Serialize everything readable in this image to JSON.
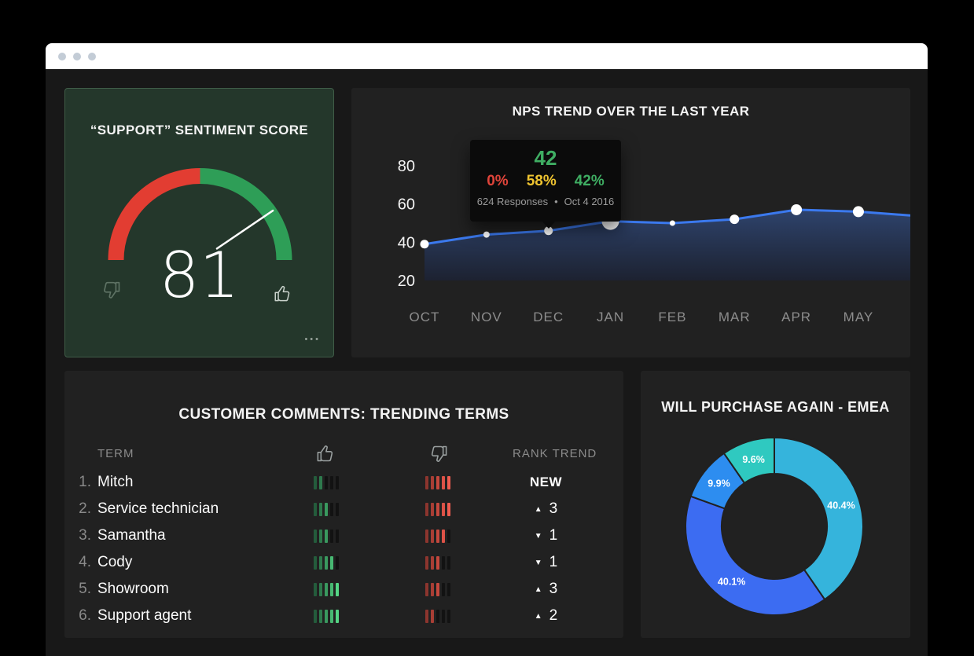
{
  "window": {
    "control_dots": 3
  },
  "icons": {
    "triangle_up": "▲",
    "triangle_down": "▼",
    "menu": "•••"
  },
  "colors": {
    "page_bg": "#000000",
    "window_bg": "#181818",
    "card_bg": "#212121",
    "gauge_card_bg": "#24372b",
    "gauge_card_border": "#3f5c47",
    "gauge_red": "#e23d32",
    "gauge_green": "#2e9e57",
    "line_blue": "#3b79ee",
    "area_top": "#2f4570",
    "area_bottom": "#1c2233",
    "axis_label": "#8d8d8d",
    "ytick_label": "#f2f2f2",
    "bar_unlit": "#121212",
    "bar_green": [
      "#245c3c",
      "#2e7a4d",
      "#3a995f",
      "#47b872",
      "#55d685"
    ],
    "bar_red": [
      "#8c352e",
      "#a83e35",
      "#c4483d",
      "#dc5247",
      "#ef5c50"
    ]
  },
  "chart_data": [
    {
      "id": "sentiment_gauge",
      "type": "gauge",
      "title": "“SUPPORT” SENTIMENT SCORE",
      "value": 81,
      "min": 0,
      "max": 100,
      "segments": [
        {
          "from": 0,
          "to": 50,
          "color": "#e23d32"
        },
        {
          "from": 50,
          "to": 100,
          "color": "#2e9e57"
        }
      ],
      "menu_label": "•••"
    },
    {
      "id": "nps_trend",
      "type": "area",
      "title": "NPS TREND OVER THE LAST YEAR",
      "categories": [
        "OCT",
        "NOV",
        "DEC",
        "JAN",
        "FEB",
        "MAR",
        "APR",
        "MAY"
      ],
      "values": [
        39,
        44,
        46,
        51,
        50,
        52,
        57,
        56
      ],
      "edge_value": 54,
      "xlabel": "",
      "ylabel": "",
      "ylim": [
        20,
        80
      ],
      "yticks": [
        "80",
        "60",
        "40",
        "20"
      ],
      "grid": false,
      "highlight_index": 3,
      "dot_radii": [
        5.5,
        4,
        5.5,
        11,
        3.5,
        6,
        7,
        7
      ],
      "tooltip": {
        "value": "42",
        "segments": [
          {
            "label": "0%",
            "color": "#e0443a"
          },
          {
            "label": "58%",
            "color": "#efc430"
          },
          {
            "label": "42%",
            "color": "#3fae63"
          }
        ],
        "responses": "624 Responses",
        "separator": "•",
        "date": "Oct 4 2016"
      }
    },
    {
      "id": "trending_terms",
      "type": "table",
      "title": "CUSTOMER COMMENTS: TRENDING TERMS",
      "columns": [
        "TERM",
        "thumbs-up",
        "thumbs-down",
        "RANK TREND"
      ],
      "rows": [
        {
          "num": "1.",
          "term": "Mitch",
          "up": 2,
          "down": 5,
          "trend": {
            "type": "new",
            "label": "NEW"
          }
        },
        {
          "num": "2.",
          "term": "Service technician",
          "up": 3,
          "down": 5,
          "trend": {
            "type": "up",
            "value": "3"
          }
        },
        {
          "num": "3.",
          "term": "Samantha",
          "up": 3,
          "down": 4,
          "trend": {
            "type": "down",
            "value": "1"
          }
        },
        {
          "num": "4.",
          "term": "Cody",
          "up": 4,
          "down": 3,
          "trend": {
            "type": "down",
            "value": "1"
          }
        },
        {
          "num": "5.",
          "term": "Showroom",
          "up": 5,
          "down": 3,
          "trend": {
            "type": "up",
            "value": "3"
          }
        },
        {
          "num": "6.",
          "term": "Support agent",
          "up": 5,
          "down": 2,
          "trend": {
            "type": "up",
            "value": "2"
          }
        }
      ]
    },
    {
      "id": "purchase_again",
      "type": "donut",
      "title": "WILL PURCHASE AGAIN - EMEA",
      "slices": [
        {
          "label": "40.4%",
          "value": 40.4,
          "color": "#35b4dc"
        },
        {
          "label": "40.1%",
          "value": 40.1,
          "color": "#3c6cf2"
        },
        {
          "label": "9.9%",
          "value": 9.9,
          "color": "#2d8df0"
        },
        {
          "label": "9.6%",
          "value": 9.6,
          "color": "#2fc9c0"
        }
      ]
    }
  ]
}
